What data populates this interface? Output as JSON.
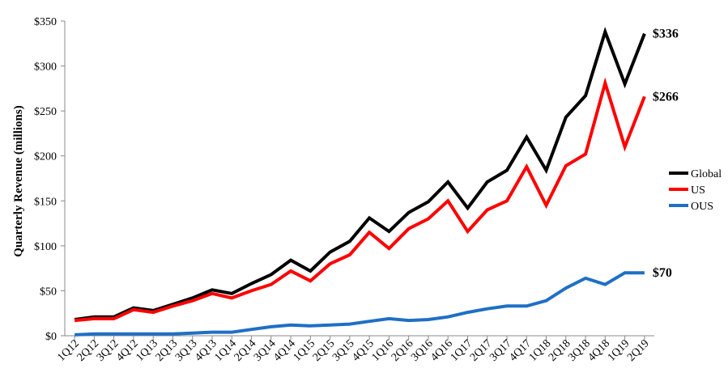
{
  "chart_data": {
    "type": "line",
    "title": "",
    "xlabel": "",
    "ylabel": "Quarterly Revenue (millions)",
    "ylim": [
      0,
      350
    ],
    "yticks": [
      0,
      50,
      100,
      150,
      200,
      250,
      300,
      350
    ],
    "ytick_labels": [
      "$0",
      "$50",
      "$100",
      "$150",
      "$200",
      "$250",
      "$300",
      "$350"
    ],
    "grid": false,
    "legend_position": "right",
    "categories": [
      "1Q12",
      "2Q12",
      "3Q12",
      "4Q12",
      "1Q13",
      "2Q13",
      "3Q13",
      "4Q13",
      "1Q14",
      "2Q14",
      "3Q14",
      "4Q14",
      "1Q15",
      "2Q15",
      "3Q15",
      "4Q15",
      "1Q16",
      "2Q16",
      "3Q16",
      "4Q16",
      "1Q17",
      "2Q17",
      "3Q17",
      "4Q17",
      "1Q18",
      "2Q18",
      "3Q18",
      "4Q18",
      "1Q19",
      "2Q19"
    ],
    "series": [
      {
        "name": "Global",
        "color": "#000000",
        "end_label": "$336",
        "values": [
          18,
          21,
          21,
          31,
          28,
          35,
          42,
          51,
          47,
          58,
          68,
          84,
          72,
          93,
          105,
          131,
          116,
          137,
          149,
          171,
          142,
          171,
          184,
          221,
          184,
          243,
          267,
          338,
          280,
          336
        ]
      },
      {
        "name": "US",
        "color": "#ff0000",
        "end_label": "$266",
        "values": [
          17,
          19,
          19,
          29,
          26,
          33,
          39,
          47,
          42,
          50,
          57,
          72,
          61,
          80,
          90,
          115,
          97,
          119,
          130,
          150,
          116,
          140,
          150,
          188,
          145,
          189,
          202,
          281,
          210,
          266
        ]
      },
      {
        "name": "OUS",
        "color": "#1f6fc5",
        "end_label": "$70",
        "values": [
          1,
          2,
          2,
          2,
          2,
          2,
          3,
          4,
          4,
          7,
          10,
          12,
          11,
          12,
          13,
          16,
          19,
          17,
          18,
          21,
          26,
          30,
          33,
          33,
          39,
          53,
          64,
          57,
          70,
          70
        ]
      }
    ]
  }
}
